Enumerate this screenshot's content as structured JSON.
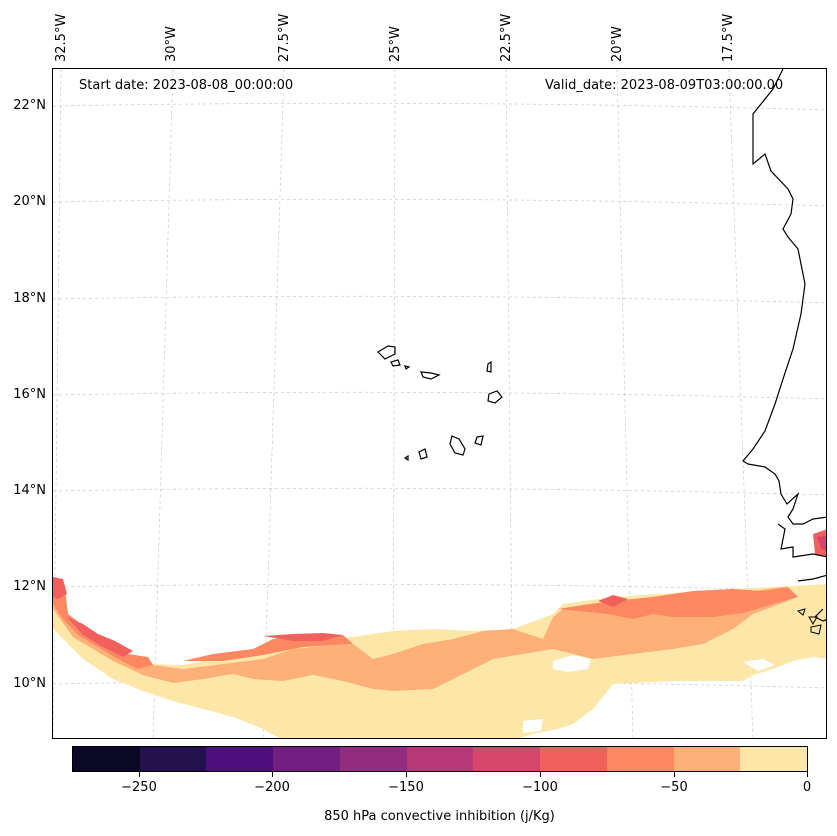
{
  "map": {
    "start_date": "Start date: 2023-08-08_00:00:00",
    "valid_date": "Valid_date: 2023-08-09T03:00:00.00",
    "lon_labels": [
      "32.5°W",
      "30°W",
      "27.5°W",
      "25°W",
      "22.5°W",
      "20°W",
      "17.5°W"
    ],
    "lat_labels": [
      "22°N",
      "20°N",
      "18°N",
      "16°N",
      "14°N",
      "12°N",
      "10°N"
    ]
  },
  "colorbar": {
    "title": "850 hPa convective inhibition (j/Kg)",
    "tick_labels": [
      "−250",
      "−200",
      "−150",
      "−100",
      "−50",
      "0"
    ],
    "colors": [
      "#0b0826",
      "#22124d",
      "#4c0f7d",
      "#721f81",
      "#932b80",
      "#b73779",
      "#d8456c",
      "#f1605d",
      "#fb8861",
      "#feb078",
      "#fde7a8"
    ]
  }
}
